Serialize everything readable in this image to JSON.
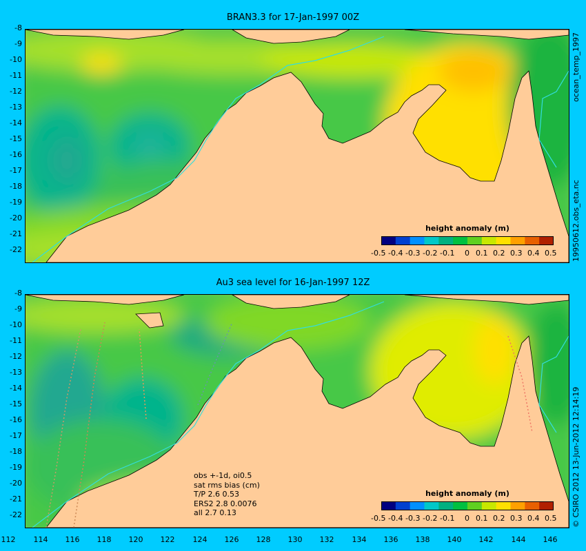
{
  "panels": [
    {
      "title": "BRAN3.3 for 17-Jan-1997 00Z",
      "colorbar_title": "height anomaly (m)",
      "side_label": "19950612.obs_eta.nc",
      "side_label_top": "ocean_temp_1997"
    },
    {
      "title": "Au3 sea level  for 16-Jan-1997 12Z",
      "colorbar_title": "height anomaly (m)",
      "side_label": "© CSIRO 2012  13-Jun-2012 12:14:19",
      "stats": [
        "obs +-1d, oi0.5",
        "sat rms bias (cm)",
        "T/P  2.6 0.53",
        "ERS2 2.8 0.0076",
        "all 2.7 0.13"
      ]
    }
  ],
  "y_ticks": [
    "-8",
    "-9",
    "-10",
    "-11",
    "-12",
    "-13",
    "-14",
    "-15",
    "-16",
    "-17",
    "-18",
    "-19",
    "-20",
    "-21",
    "-22"
  ],
  "x_ticks": [
    "112",
    "114",
    "116",
    "118",
    "120",
    "122",
    "124",
    "126",
    "128",
    "130",
    "132",
    "134",
    "136",
    "138",
    "140",
    "142",
    "144",
    "146"
  ],
  "colorbar_ticks": [
    "-0.5",
    "-0.4",
    "-0.3",
    "-0.2",
    "-0.1",
    "0",
    "0.1",
    "0.2",
    "0.3",
    "0.4",
    "0.5"
  ],
  "colorbar_colors": [
    "#000080",
    "#0040d0",
    "#0090ff",
    "#00c8c8",
    "#00b080",
    "#00c040",
    "#60d020",
    "#c8e800",
    "#ffe000",
    "#ffa000",
    "#e86000",
    "#b02000"
  ],
  "land_color": "#ffcc99",
  "background_color": "#00ccff"
}
